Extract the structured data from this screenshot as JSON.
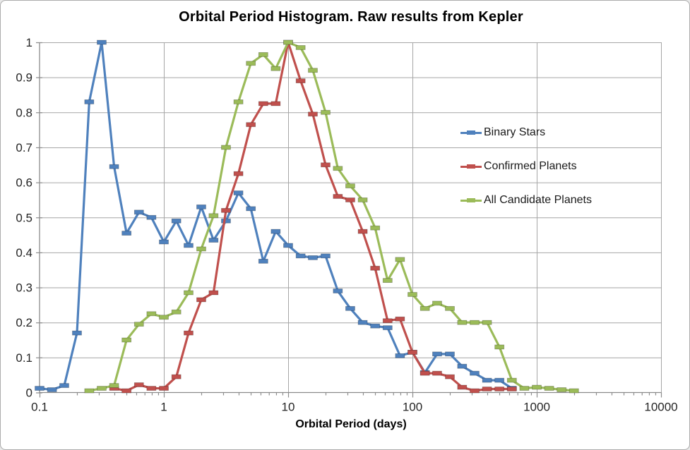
{
  "chart": {
    "title": "Orbital Period Histogram. Raw results from Kepler",
    "x_axis": {
      "label": "Orbital Period (days)",
      "tick_labels": [
        "0.1",
        "1",
        "10",
        "100",
        "1000",
        "10000"
      ],
      "tick_values": [
        0.1,
        1,
        10,
        100,
        1000,
        10000
      ]
    },
    "y_axis": {
      "tick_labels": [
        "0",
        "0.1",
        "0.2",
        "0.3",
        "0.4",
        "0.5",
        "0.6",
        "0.7",
        "0.8",
        "0.9",
        "1"
      ],
      "tick_values": [
        0,
        0.1,
        0.2,
        0.3,
        0.4,
        0.5,
        0.6,
        0.7,
        0.8,
        0.9,
        1
      ]
    },
    "legend": [
      {
        "label": "Binary Stars",
        "color": "#4f81bd"
      },
      {
        "label": "Confirmed Planets",
        "color": "#c0504d"
      },
      {
        "label": "All Candidate Planets",
        "color": "#9bbb59"
      }
    ],
    "colors": {
      "gridline": "#a6a6a6",
      "axis": "#8c8c8c",
      "tick_text": "#262626"
    }
  },
  "chart_data": {
    "type": "line",
    "title": "Orbital Period Histogram. Raw results from Kepler",
    "xlabel": "Orbital Period (days)",
    "ylabel": "",
    "x_scale": "log",
    "xlim": [
      0.1,
      10000
    ],
    "ylim": [
      0,
      1
    ],
    "grid": true,
    "legend_position": "middle-right",
    "marker": "horizontal-dash",
    "series": [
      {
        "name": "Binary Stars",
        "color": "#4f81bd",
        "points": [
          [
            0.1,
            0.012
          ],
          [
            0.126,
            0.008
          ],
          [
            0.158,
            0.02
          ],
          [
            0.2,
            0.17
          ],
          [
            0.251,
            0.83
          ],
          [
            0.316,
            1.0
          ],
          [
            0.398,
            0.645
          ],
          [
            0.501,
            0.455
          ],
          [
            0.631,
            0.515
          ],
          [
            0.794,
            0.5
          ],
          [
            1,
            0.43
          ],
          [
            1.26,
            0.49
          ],
          [
            1.58,
            0.42
          ],
          [
            2,
            0.53
          ],
          [
            2.51,
            0.435
          ],
          [
            3.16,
            0.49
          ],
          [
            3.98,
            0.57
          ],
          [
            5.01,
            0.525
          ],
          [
            6.31,
            0.375
          ],
          [
            7.94,
            0.46
          ],
          [
            10,
            0.42
          ],
          [
            12.6,
            0.39
          ],
          [
            15.8,
            0.385
          ],
          [
            20,
            0.39
          ],
          [
            25.1,
            0.29
          ],
          [
            31.6,
            0.24
          ],
          [
            39.8,
            0.2
          ],
          [
            50.1,
            0.19
          ],
          [
            63.1,
            0.185
          ],
          [
            79.4,
            0.105
          ],
          [
            100,
            0.115
          ],
          [
            126,
            0.057
          ],
          [
            158,
            0.11
          ],
          [
            200,
            0.11
          ],
          [
            251,
            0.075
          ],
          [
            316,
            0.055
          ],
          [
            398,
            0.035
          ],
          [
            501,
            0.035
          ],
          [
            631,
            0.012
          ]
        ]
      },
      {
        "name": "Confirmed Planets",
        "color": "#c0504d",
        "points": [
          [
            0.398,
            0.012
          ],
          [
            0.501,
            0.005
          ],
          [
            0.631,
            0.022
          ],
          [
            0.794,
            0.012
          ],
          [
            1,
            0.012
          ],
          [
            1.26,
            0.045
          ],
          [
            1.58,
            0.17
          ],
          [
            2,
            0.265
          ],
          [
            2.51,
            0.285
          ],
          [
            3.16,
            0.52
          ],
          [
            3.98,
            0.625
          ],
          [
            5.01,
            0.765
          ],
          [
            6.31,
            0.825
          ],
          [
            7.94,
            0.825
          ],
          [
            10,
            1.0
          ],
          [
            12.6,
            0.89
          ],
          [
            15.8,
            0.795
          ],
          [
            20,
            0.65
          ],
          [
            25.1,
            0.56
          ],
          [
            31.6,
            0.55
          ],
          [
            39.8,
            0.46
          ],
          [
            50.1,
            0.355
          ],
          [
            63.1,
            0.205
          ],
          [
            79.4,
            0.21
          ],
          [
            100,
            0.115
          ],
          [
            126,
            0.055
          ],
          [
            158,
            0.055
          ],
          [
            200,
            0.045
          ],
          [
            251,
            0.015
          ],
          [
            316,
            0.005
          ],
          [
            398,
            0.01
          ],
          [
            501,
            0.01
          ],
          [
            631,
            0.01
          ]
        ]
      },
      {
        "name": "All Candidate Planets",
        "color": "#9bbb59",
        "points": [
          [
            0.251,
            0.005
          ],
          [
            0.316,
            0.012
          ],
          [
            0.398,
            0.02
          ],
          [
            0.501,
            0.15
          ],
          [
            0.631,
            0.195
          ],
          [
            0.794,
            0.225
          ],
          [
            1,
            0.215
          ],
          [
            1.26,
            0.23
          ],
          [
            1.58,
            0.285
          ],
          [
            2,
            0.41
          ],
          [
            2.51,
            0.505
          ],
          [
            3.16,
            0.7
          ],
          [
            3.98,
            0.83
          ],
          [
            5.01,
            0.94
          ],
          [
            6.31,
            0.965
          ],
          [
            7.94,
            0.925
          ],
          [
            10,
            1.0
          ],
          [
            12.6,
            0.985
          ],
          [
            15.8,
            0.92
          ],
          [
            20,
            0.8
          ],
          [
            25.1,
            0.64
          ],
          [
            31.6,
            0.59
          ],
          [
            39.8,
            0.55
          ],
          [
            50.1,
            0.47
          ],
          [
            63.1,
            0.32
          ],
          [
            79.4,
            0.38
          ],
          [
            100,
            0.28
          ],
          [
            126,
            0.24
          ],
          [
            158,
            0.255
          ],
          [
            200,
            0.24
          ],
          [
            251,
            0.2
          ],
          [
            316,
            0.2
          ],
          [
            398,
            0.2
          ],
          [
            501,
            0.13
          ],
          [
            631,
            0.035
          ],
          [
            794,
            0.012
          ],
          [
            1000,
            0.015
          ],
          [
            1259,
            0.012
          ],
          [
            1585,
            0.008
          ],
          [
            1995,
            0.005
          ]
        ]
      }
    ]
  }
}
